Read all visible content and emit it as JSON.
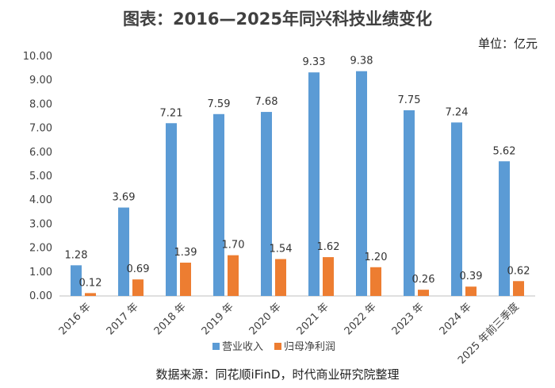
{
  "chart_data": {
    "type": "bar",
    "title": "图表：2016—2025年同兴科技业绩变化",
    "unit": "单位：亿元",
    "source": "数据来源：同花顺iFinD，时代商业研究院整理",
    "categories": [
      "2016 年",
      "2017 年",
      "2018 年",
      "2019 年",
      "2020 年",
      "2021 年",
      "2022 年",
      "2023 年",
      "2024 年",
      "2025 年前三季度"
    ],
    "series": [
      {
        "name": "营业收入",
        "color": "#5B9BD5",
        "values": [
          1.28,
          3.69,
          7.21,
          7.59,
          7.68,
          9.33,
          9.38,
          7.75,
          7.24,
          5.62
        ]
      },
      {
        "name": "归母净利润",
        "color": "#ED7D31",
        "values": [
          0.12,
          0.69,
          1.39,
          1.7,
          1.54,
          1.62,
          1.2,
          0.26,
          0.39,
          0.62
        ]
      }
    ],
    "ylim": [
      0,
      10
    ],
    "yticks": [
      "0.00",
      "1.00",
      "2.00",
      "3.00",
      "4.00",
      "5.00",
      "6.00",
      "7.00",
      "8.00",
      "9.00",
      "10.00"
    ],
    "grid": false,
    "legend_position": "bottom"
  }
}
